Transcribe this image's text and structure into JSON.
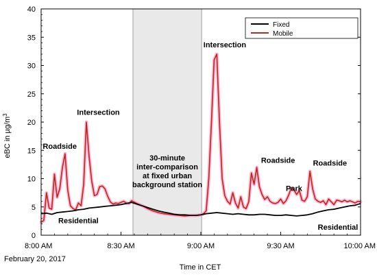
{
  "chart_data": {
    "type": "line",
    "xlabel": "Time in CET",
    "ylabel_main": "eBC in µg/m",
    "ylabel_sup": "3",
    "date_label": "February 20, 2017",
    "ylim": [
      0,
      40
    ],
    "yticks": [
      0,
      5,
      10,
      15,
      20,
      25,
      30,
      35,
      40
    ],
    "x_unit": "minutes after 8:00 AM",
    "xlim": [
      0,
      120
    ],
    "xticks": [
      {
        "t": 0,
        "label": "8:00 AM"
      },
      {
        "t": 30,
        "label": "8:30 AM"
      },
      {
        "t": 60,
        "label": "9:00 AM"
      },
      {
        "t": 90,
        "label": "9:30 AM"
      },
      {
        "t": 120,
        "label": "10:00 AM"
      }
    ],
    "grid": false,
    "legend_position": "top-right",
    "colors": {
      "fixed": "#000000",
      "mobile": "#b5281a",
      "mobile_glow": "#ff9ec8",
      "shade": "#e9e9e9"
    },
    "shaded_region": {
      "start": 34.5,
      "end": 60.3,
      "text_lines": [
        "30-minute",
        "inter-comparison",
        "at fixed urban",
        "background station"
      ]
    },
    "annotations": [
      {
        "text": "Roadside",
        "t": 7,
        "y": 15.3
      },
      {
        "text": "Intersection",
        "t": 21.5,
        "y": 21.3
      },
      {
        "text": "Residential",
        "t": 14,
        "y": 2.1
      },
      {
        "text": "Intersection",
        "t": 69,
        "y": 33.2
      },
      {
        "text": "Roadside",
        "t": 89,
        "y": 12.8
      },
      {
        "text": "Park",
        "t": 95,
        "y": 7.8
      },
      {
        "text": "Roadside",
        "t": 108.5,
        "y": 12.3
      },
      {
        "text": "Residential",
        "t": 111.5,
        "y": 1.0
      }
    ],
    "series": [
      {
        "name": "Fixed",
        "x": [
          0,
          2,
          4,
          6,
          8,
          10,
          12,
          14,
          16,
          18,
          20,
          22,
          24,
          26,
          28,
          30,
          32,
          34,
          36,
          38,
          40,
          42,
          44,
          46,
          48,
          50,
          52,
          54,
          56,
          58,
          60,
          62,
          64,
          66,
          68,
          70,
          72,
          74,
          76,
          78,
          80,
          82,
          84,
          86,
          88,
          90,
          92,
          94,
          96,
          98,
          100,
          102,
          104,
          106,
          108,
          110,
          112,
          114,
          116,
          118,
          120
        ],
        "y": [
          3.8,
          3.9,
          3.7,
          4.0,
          4.1,
          4.2,
          4.3,
          4.5,
          4.6,
          4.8,
          4.9,
          5.0,
          5.1,
          5.2,
          5.3,
          5.4,
          5.6,
          5.8,
          5.5,
          5.2,
          4.9,
          4.6,
          4.3,
          4.1,
          3.9,
          3.7,
          3.6,
          3.6,
          3.5,
          3.5,
          3.6,
          3.8,
          3.9,
          4.0,
          3.9,
          3.8,
          3.7,
          3.8,
          3.7,
          3.6,
          3.6,
          3.7,
          3.7,
          3.6,
          3.5,
          3.5,
          3.6,
          3.5,
          3.4,
          3.5,
          3.6,
          3.8,
          4.1,
          4.3,
          4.5,
          4.6,
          4.8,
          5.0,
          5.2,
          5.3,
          5.6
        ]
      },
      {
        "name": "Mobile",
        "x": [
          0,
          1,
          2,
          3,
          4,
          5,
          6,
          7,
          8,
          9,
          10,
          11,
          12,
          13,
          14,
          15,
          16,
          17,
          18,
          19,
          20,
          21,
          22,
          23,
          24,
          25,
          26,
          27,
          28,
          29,
          30,
          31,
          32,
          33,
          34,
          36,
          38,
          40,
          42,
          44,
          46,
          48,
          50,
          52,
          54,
          56,
          58,
          60,
          61,
          62,
          63,
          64,
          65,
          66,
          67,
          68,
          69,
          70,
          71,
          72,
          73,
          74,
          75,
          76,
          77,
          78,
          79,
          80,
          81,
          82,
          83,
          84,
          85,
          86,
          87,
          88,
          89,
          90,
          91,
          92,
          93,
          94,
          95,
          96,
          97,
          98,
          99,
          100,
          101,
          102,
          103,
          104,
          105,
          106,
          107,
          108,
          109,
          110,
          111,
          112,
          113,
          114,
          115,
          116,
          117,
          118,
          119,
          120
        ],
        "y": [
          2.3,
          2.6,
          7.5,
          4.8,
          4.6,
          10.8,
          6.7,
          8.2,
          12.0,
          14.4,
          8.0,
          5.2,
          4.7,
          4.5,
          5.7,
          5.2,
          9.0,
          20.0,
          14.0,
          9.6,
          7.0,
          7.2,
          8.6,
          8.7,
          8.2,
          6.9,
          5.9,
          5.5,
          5.7,
          5.6,
          5.8,
          6.0,
          5.7,
          5.6,
          6.1,
          5.6,
          5.2,
          4.7,
          4.3,
          4.0,
          3.8,
          3.7,
          3.6,
          3.5,
          3.4,
          3.5,
          3.5,
          3.6,
          3.8,
          4.3,
          10.0,
          20.0,
          31.0,
          32.0,
          20.0,
          10.0,
          7.0,
          6.0,
          5.5,
          7.5,
          5.7,
          4.8,
          6.8,
          5.0,
          4.7,
          5.9,
          11.0,
          9.0,
          12.0,
          8.6,
          7.2,
          6.3,
          6.8,
          6.0,
          5.7,
          5.6,
          5.8,
          6.4,
          5.6,
          6.1,
          7.1,
          8.4,
          8.0,
          7.2,
          7.9,
          6.2,
          6.0,
          6.8,
          11.3,
          8.2,
          6.4,
          6.0,
          5.8,
          6.1,
          5.4,
          6.4,
          5.9,
          5.4,
          6.2,
          6.1,
          5.9,
          6.2,
          5.9,
          6.1,
          5.9,
          5.7,
          6.0,
          5.9
        ]
      }
    ]
  }
}
